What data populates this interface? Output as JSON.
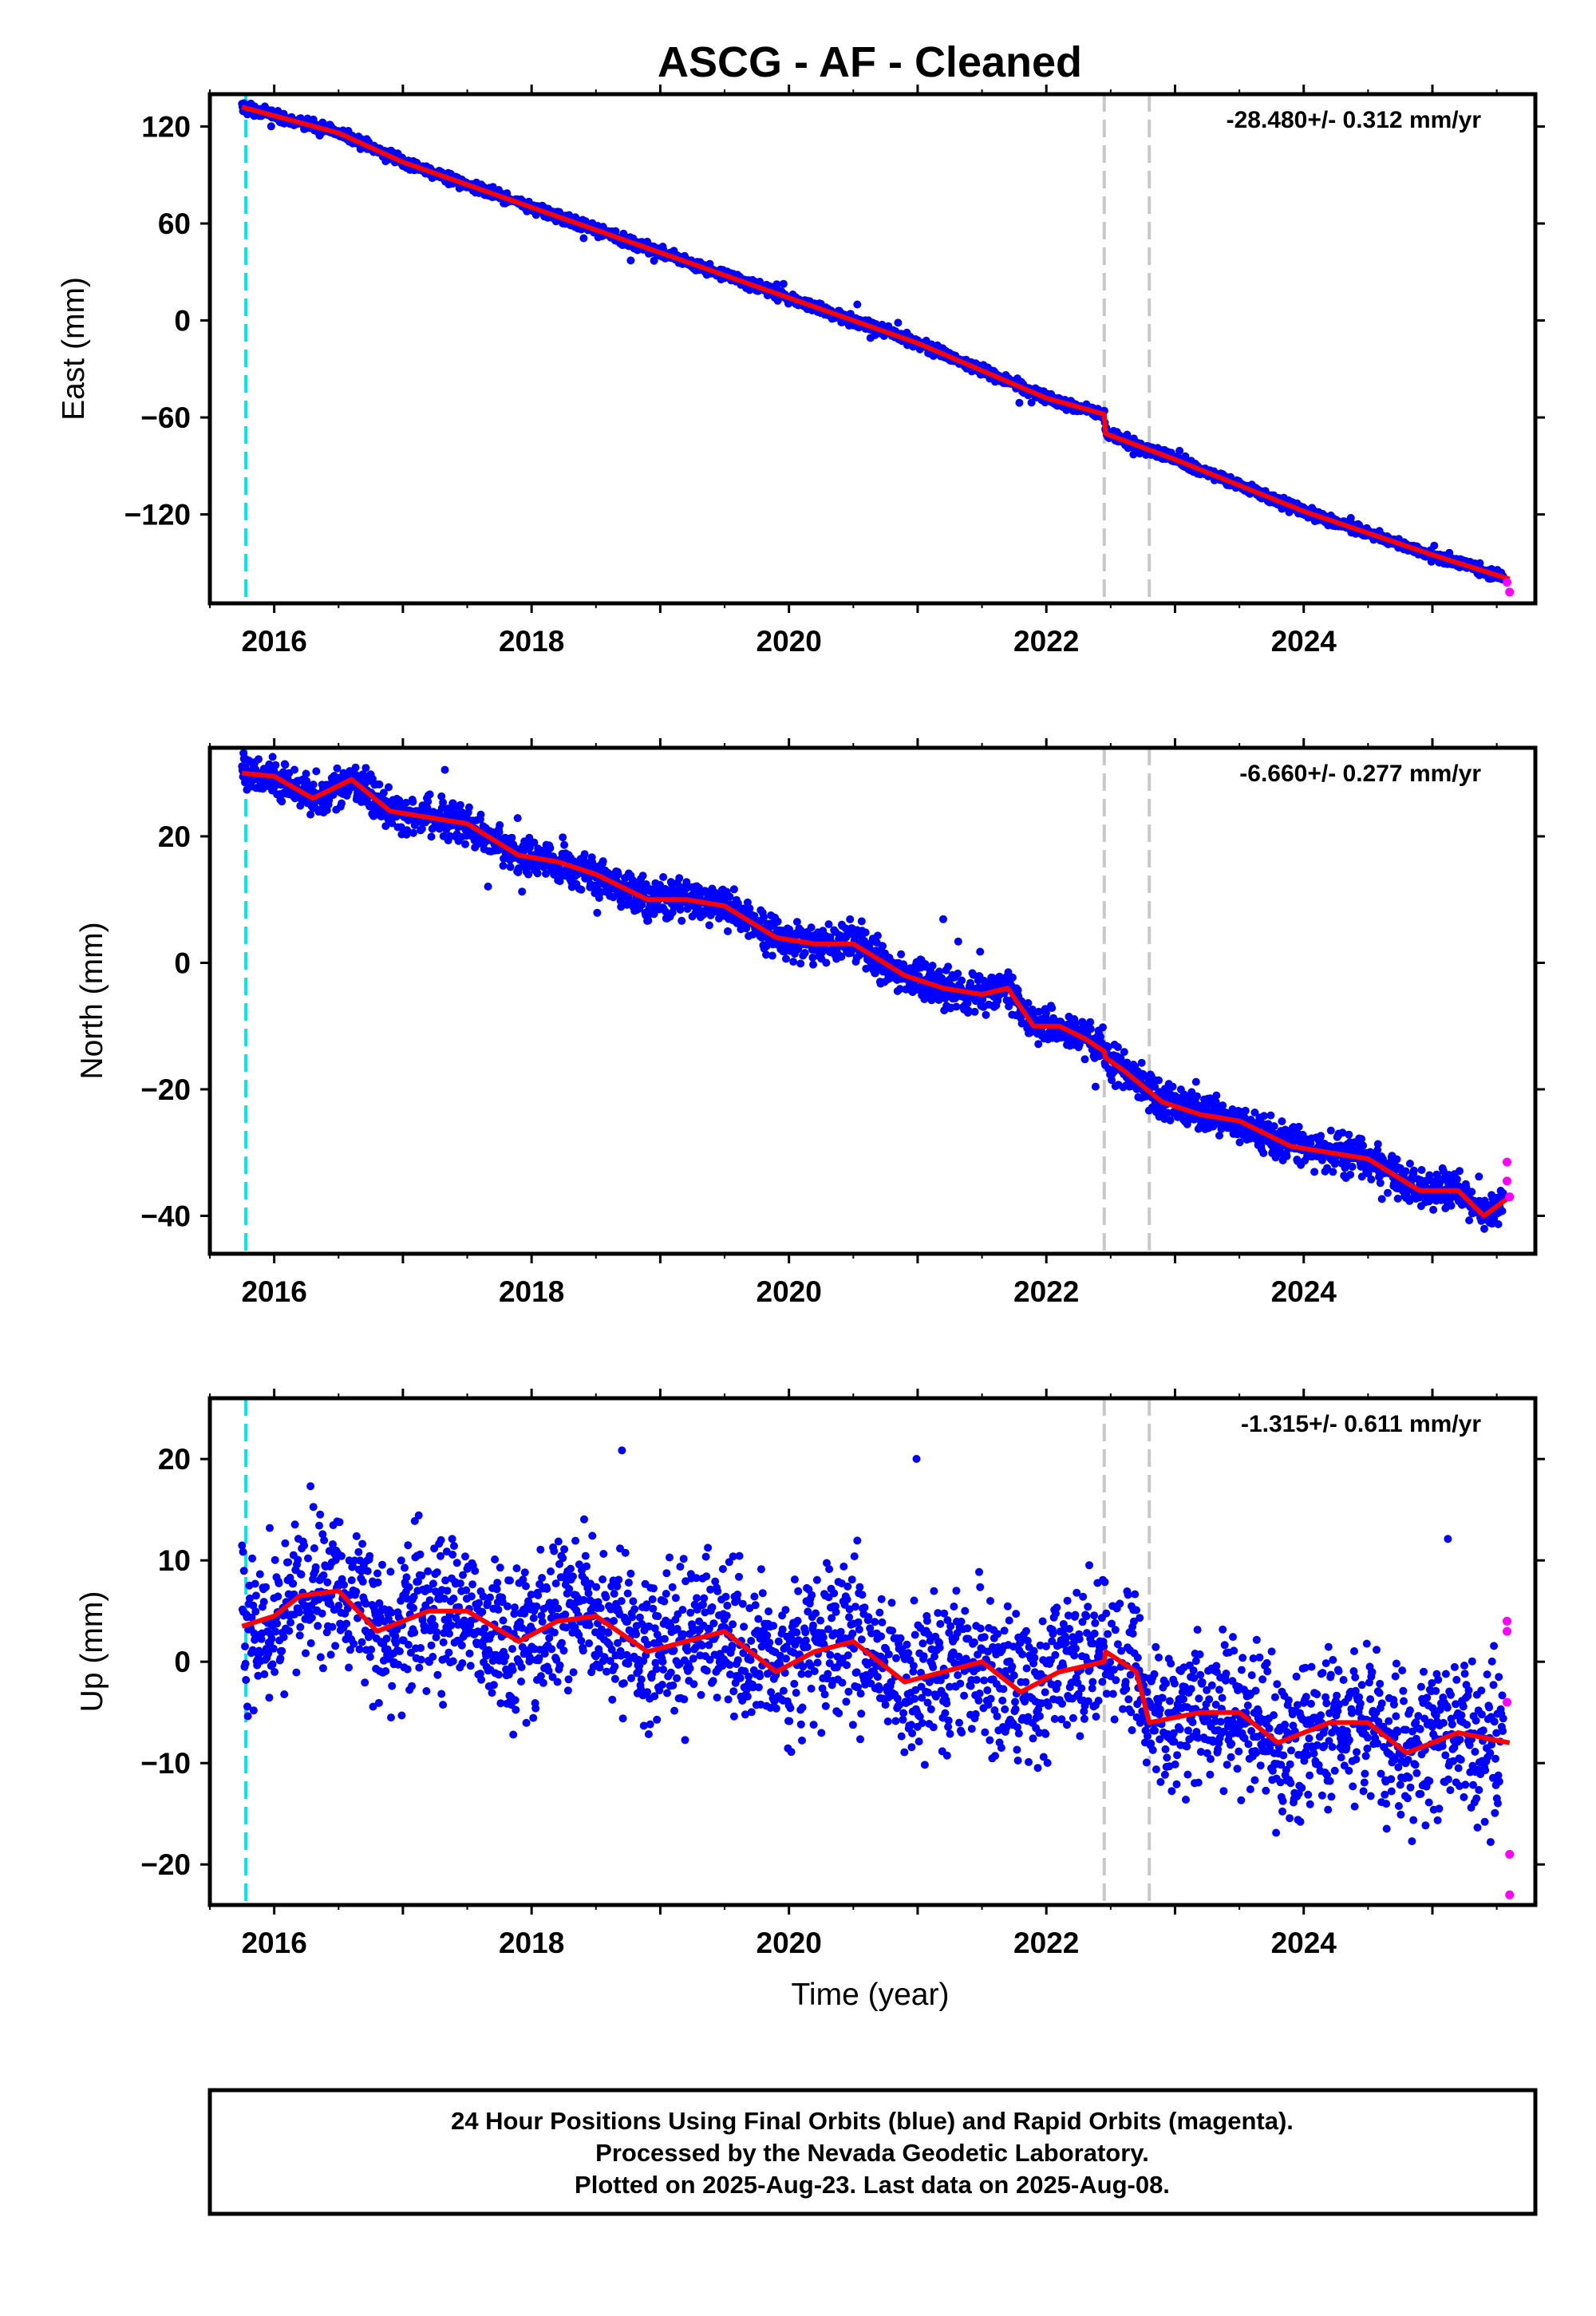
{
  "title": "ASCG  - AF - Cleaned",
  "footer": {
    "lines": [
      "24 Hour Positions Using Final Orbits (blue) and Rapid Orbits (magenta).",
      "Processed by the Nevada Geodetic Laboratory.",
      "Plotted on 2025-Aug-23. Last data on 2025-Aug-08."
    ]
  },
  "colors": {
    "final_orbits": "#0000ff",
    "rapid_orbits": "#ff00ff",
    "model": "#ff0000",
    "start_marker": "#00e5e5",
    "equipment_change": "#c8c8c8"
  },
  "chart_data": [
    {
      "type": "scatter",
      "ylabel": "East (mm)",
      "xlabel": "",
      "xlim": [
        2015.5,
        2025.8
      ],
      "ylim": [
        -175,
        140
      ],
      "xticks": [
        "2016",
        "2018",
        "2020",
        "2022",
        "2024"
      ],
      "yticks": [
        "120",
        "60",
        "0",
        "−60",
        "−120"
      ],
      "rate_label": "-28.480+/- 0.312 mm/yr",
      "start_marker_x": 2015.78,
      "equipment_change_x": [
        2022.45,
        2022.8
      ],
      "series": [
        {
          "name": "Final Orbits",
          "trend": {
            "x": [
              2015.75,
              2025.55
            ],
            "y": [
              132,
              -158
            ]
          },
          "scatter": 2.0
        },
        {
          "name": "Rapid Orbits",
          "x": [
            2025.58,
            2025.6
          ],
          "y": [
            -162,
            -168
          ]
        },
        {
          "name": "Model",
          "x": [
            2015.75,
            2016.5,
            2017.0,
            2018.0,
            2019.0,
            2020.0,
            2021.0,
            2022.0,
            2022.45,
            2022.46,
            2023.0,
            2024.0,
            2025.0,
            2025.6
          ],
          "y": [
            132,
            116,
            98,
            70,
            42,
            14,
            -14,
            -48,
            -58,
            -70,
            -86,
            -118,
            -145,
            -160
          ]
        }
      ]
    },
    {
      "type": "scatter",
      "ylabel": "North (mm)",
      "xlabel": "",
      "xlim": [
        2015.5,
        2025.8
      ],
      "ylim": [
        -46,
        34
      ],
      "xticks": [
        "2016",
        "2018",
        "2020",
        "2022",
        "2024"
      ],
      "yticks": [
        "20",
        "0",
        "−20",
        "−40"
      ],
      "rate_label": "-6.660+/- 0.277 mm/yr",
      "start_marker_x": 2015.78,
      "equipment_change_x": [
        2022.45,
        2022.8
      ],
      "series": [
        {
          "name": "Final Orbits",
          "trend": {
            "x": [
              2015.75,
              2025.55
            ],
            "y": [
              30,
              -37
            ]
          },
          "scatter": 1.8
        },
        {
          "name": "Rapid Orbits",
          "x": [
            2025.58,
            2025.58,
            2025.6
          ],
          "y": [
            -31.5,
            -34.5,
            -37
          ]
        },
        {
          "name": "Model",
          "x": [
            2015.75,
            2016.0,
            2016.3,
            2016.6,
            2016.9,
            2017.2,
            2017.5,
            2017.9,
            2018.2,
            2018.5,
            2018.9,
            2019.2,
            2019.5,
            2019.9,
            2020.2,
            2020.5,
            2020.9,
            2021.2,
            2021.5,
            2021.7,
            2021.9,
            2022.1,
            2022.3,
            2022.45,
            2022.46,
            2022.6,
            2022.9,
            2023.2,
            2023.5,
            2023.9,
            2024.2,
            2024.5,
            2024.9,
            2025.2,
            2025.4,
            2025.6
          ],
          "y": [
            30,
            29.5,
            26,
            29,
            24,
            23,
            22,
            17,
            16,
            14,
            10,
            10,
            9,
            4,
            3,
            3,
            -2,
            -4,
            -5,
            -4,
            -10,
            -10,
            -12,
            -14,
            -15,
            -17,
            -22,
            -24,
            -25,
            -29,
            -30,
            -31,
            -36,
            -36,
            -40,
            -37
          ]
        }
      ]
    },
    {
      "type": "scatter",
      "ylabel": "Up (mm)",
      "xlabel": "Time (year)",
      "xlim": [
        2015.5,
        2025.8
      ],
      "ylim": [
        -24,
        26
      ],
      "xticks": [
        "2016",
        "2018",
        "2020",
        "2022",
        "2024"
      ],
      "yticks": [
        "20",
        "10",
        "0",
        "−10",
        "−20"
      ],
      "rate_label": "-1.315+/- 0.611 mm/yr",
      "start_marker_x": 2015.78,
      "equipment_change_x": [
        2022.45,
        2022.8
      ],
      "series": [
        {
          "name": "Final Orbits",
          "trend": {
            "x": [
              2015.75,
              2025.55
            ],
            "y": [
              4,
              -8
            ]
          },
          "scatter": 4.5
        },
        {
          "name": "Rapid Orbits",
          "x": [
            2025.58,
            2025.58,
            2025.58,
            2025.6,
            2025.6
          ],
          "y": [
            4,
            3,
            -4,
            -19,
            -23
          ]
        },
        {
          "name": "Model",
          "x": [
            2015.75,
            2016.0,
            2016.2,
            2016.5,
            2016.8,
            2017.0,
            2017.2,
            2017.5,
            2017.9,
            2018.2,
            2018.5,
            2018.9,
            2019.2,
            2019.5,
            2019.9,
            2020.2,
            2020.5,
            2020.9,
            2021.2,
            2021.5,
            2021.8,
            2022.1,
            2022.45,
            2022.46,
            2022.7,
            2022.8,
            2023.2,
            2023.5,
            2023.8,
            2024.2,
            2024.5,
            2024.8,
            2025.2,
            2025.6
          ],
          "y": [
            3.5,
            4.5,
            6.5,
            7,
            3,
            4,
            5,
            5,
            2,
            4,
            4.5,
            1,
            2,
            3,
            -1,
            1,
            2,
            -2,
            -1,
            0,
            -3,
            -1,
            0,
            1,
            -1,
            -6,
            -5,
            -5,
            -8,
            -6,
            -6,
            -9,
            -7,
            -8
          ]
        }
      ]
    }
  ]
}
